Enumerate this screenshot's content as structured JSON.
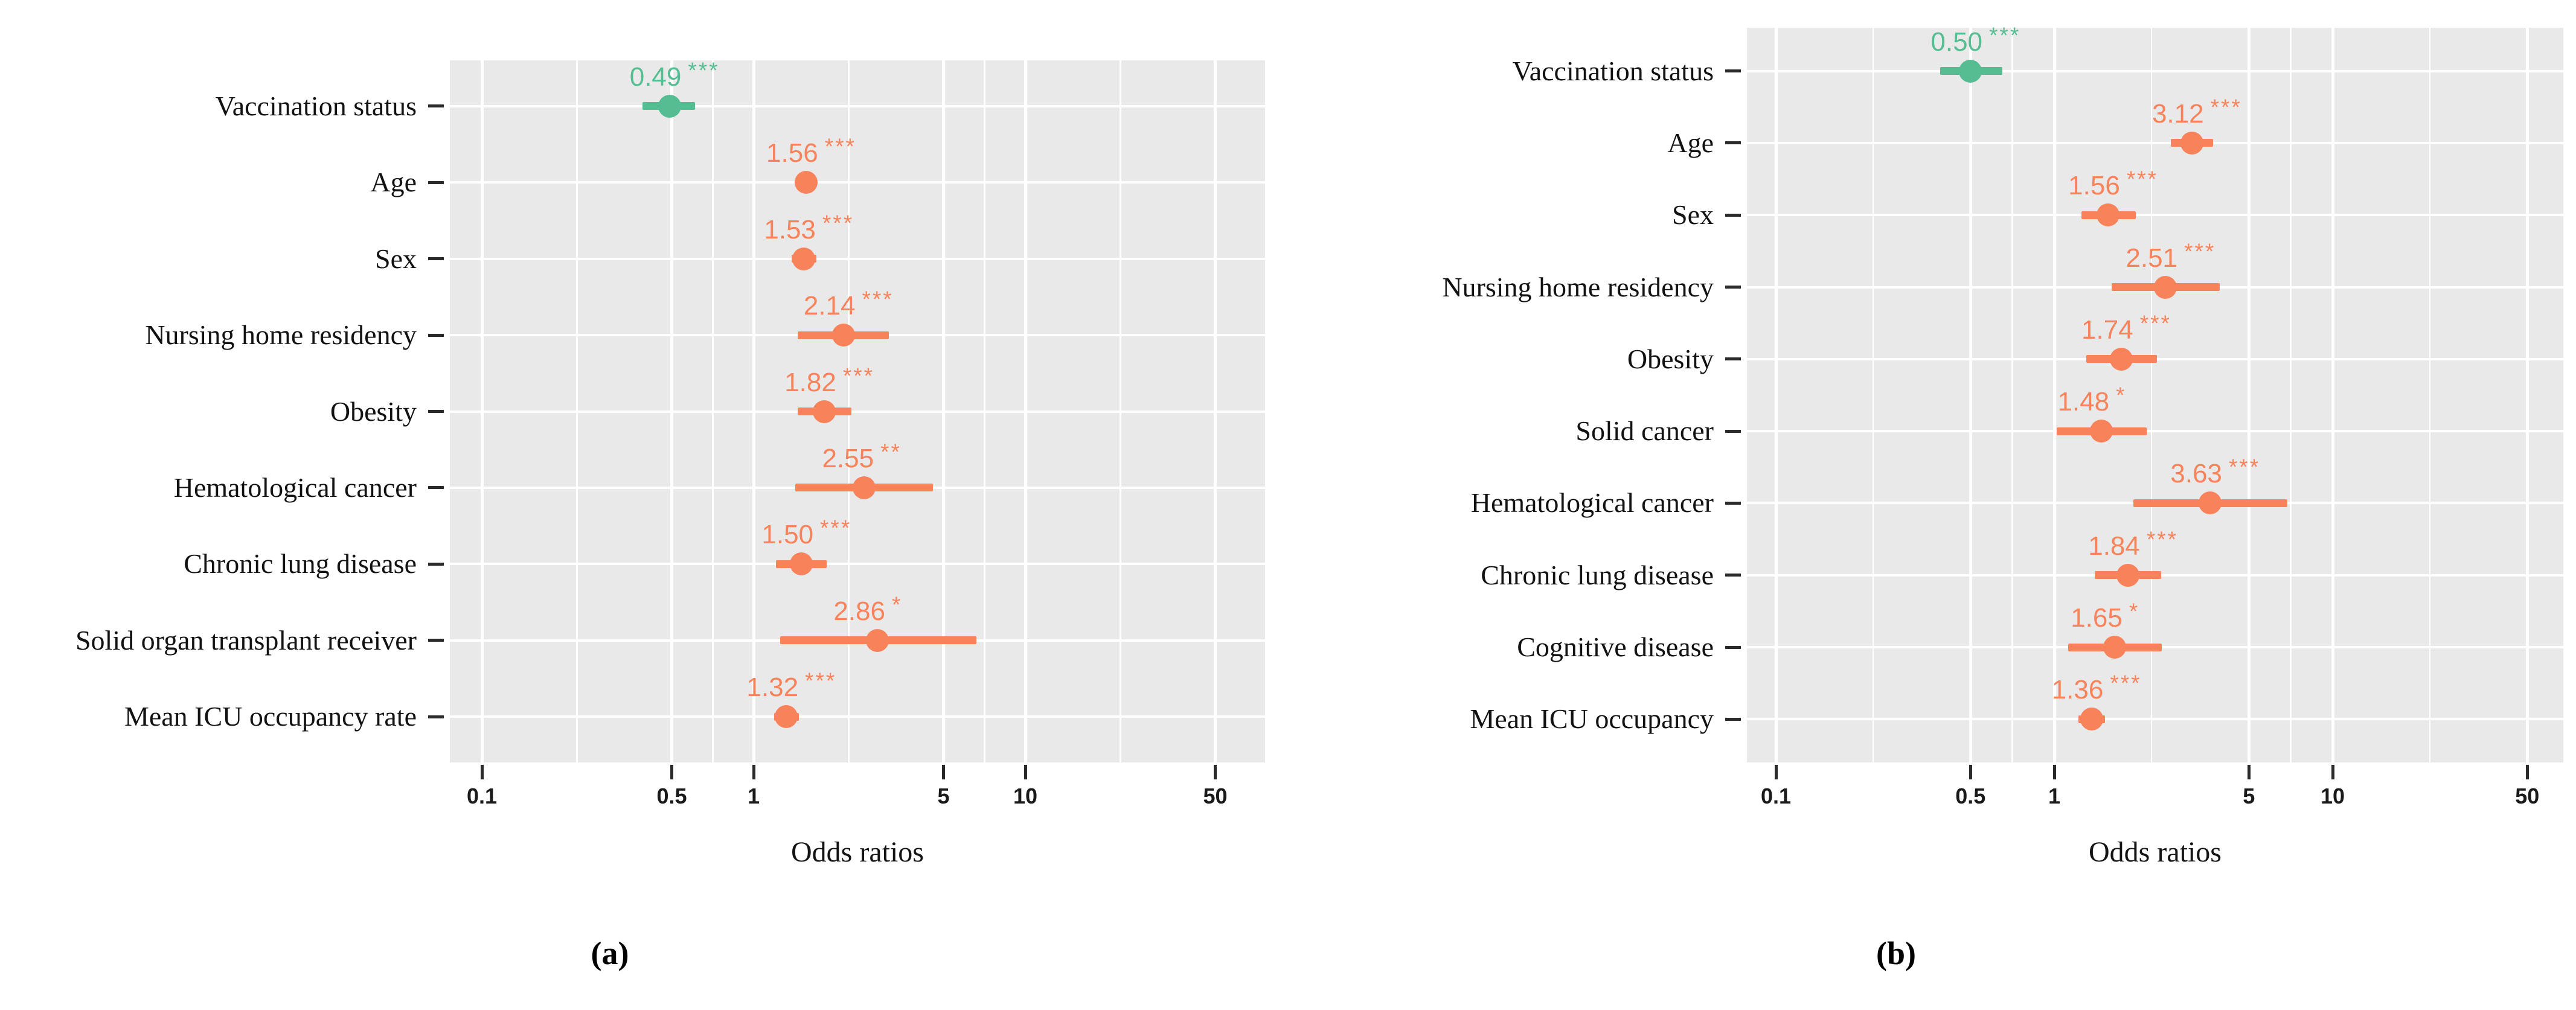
{
  "figure": {
    "description": "Two forest plots of odds ratios with 95% confidence intervals",
    "colors": {
      "panel_bg": "#E9E9E9",
      "gridline": "#FFFFFF",
      "protective": "#56BD92",
      "risk": "#F8825A",
      "axis_tick_text": "#1A1A1A",
      "category_text": "#121212"
    }
  },
  "chart_data": [
    {
      "type": "scatter",
      "subtype": "forest-plot",
      "title": "(a)",
      "xlabel": "Odds ratios",
      "xscale": "log10",
      "xlim": [
        0.076,
        76
      ],
      "grid": true,
      "legend": false,
      "x_ticks": [
        0.1,
        0.5,
        1,
        5,
        10,
        50
      ],
      "x_tick_labels": [
        "0.1",
        "0.5",
        "1",
        "5",
        "10",
        "50"
      ],
      "categories": [
        "Vaccination status",
        "Age",
        "Sex",
        "Nursing home residency",
        "Obesity",
        "Hematological cancer",
        "Chronic lung disease",
        "Solid organ transplant receiver",
        "Mean ICU occupancy rate"
      ],
      "value_labels": [
        "0.49",
        "1.56",
        "1.53",
        "2.14",
        "1.82",
        "2.55",
        "1.50",
        "2.86",
        "1.32"
      ],
      "stars": [
        "***",
        "***",
        "***",
        "***",
        "***",
        "**",
        "***",
        "*",
        "***"
      ],
      "point_color_roles": [
        "protective",
        "risk",
        "risk",
        "risk",
        "risk",
        "risk",
        "risk",
        "risk",
        "risk"
      ],
      "series": [
        {
          "name": "Odds ratio",
          "values": [
            0.49,
            1.56,
            1.53,
            2.14,
            1.82,
            2.55,
            1.5,
            2.86,
            1.32
          ]
        },
        {
          "name": "CI lower",
          "values": [
            0.39,
            1.42,
            1.38,
            1.45,
            1.45,
            1.42,
            1.21,
            1.25,
            1.19
          ]
        },
        {
          "name": "CI upper",
          "values": [
            0.61,
            1.71,
            1.7,
            3.15,
            2.29,
            4.58,
            1.86,
            6.6,
            1.47
          ]
        }
      ]
    },
    {
      "type": "scatter",
      "subtype": "forest-plot",
      "title": "(b)",
      "xlabel": "Odds ratios",
      "xscale": "log10",
      "xlim": [
        0.079,
        76
      ],
      "grid": true,
      "legend": false,
      "x_ticks": [
        0.1,
        0.5,
        1,
        5,
        10,
        50
      ],
      "x_tick_labels": [
        "0.1",
        "0.5",
        "1",
        "5",
        "10",
        "50"
      ],
      "categories": [
        "Vaccination status",
        "Age",
        "Sex",
        "Nursing home residency",
        "Obesity",
        "Solid cancer",
        "Hematological cancer",
        "Chronic lung disease",
        "Cognitive disease",
        "Mean ICU occupancy"
      ],
      "value_labels": [
        "0.50",
        "3.12",
        "1.56",
        "2.51",
        "1.74",
        "1.48",
        "3.63",
        "1.84",
        "1.65",
        "1.36"
      ],
      "stars": [
        "***",
        "***",
        "***",
        "***",
        "***",
        "*",
        "***",
        "***",
        "*",
        "***"
      ],
      "point_color_roles": [
        "protective",
        "risk",
        "risk",
        "risk",
        "risk",
        "risk",
        "risk",
        "risk",
        "risk",
        "risk"
      ],
      "series": [
        {
          "name": "Odds ratio",
          "values": [
            0.5,
            3.12,
            1.56,
            2.51,
            1.74,
            1.48,
            3.63,
            1.84,
            1.65,
            1.36
          ]
        },
        {
          "name": "CI lower",
          "values": [
            0.39,
            2.62,
            1.25,
            1.61,
            1.3,
            1.02,
            1.92,
            1.4,
            1.12,
            1.22
          ]
        },
        {
          "name": "CI upper",
          "values": [
            0.65,
            3.72,
            1.96,
            3.93,
            2.34,
            2.15,
            6.87,
            2.42,
            2.43,
            1.52
          ]
        }
      ]
    }
  ]
}
